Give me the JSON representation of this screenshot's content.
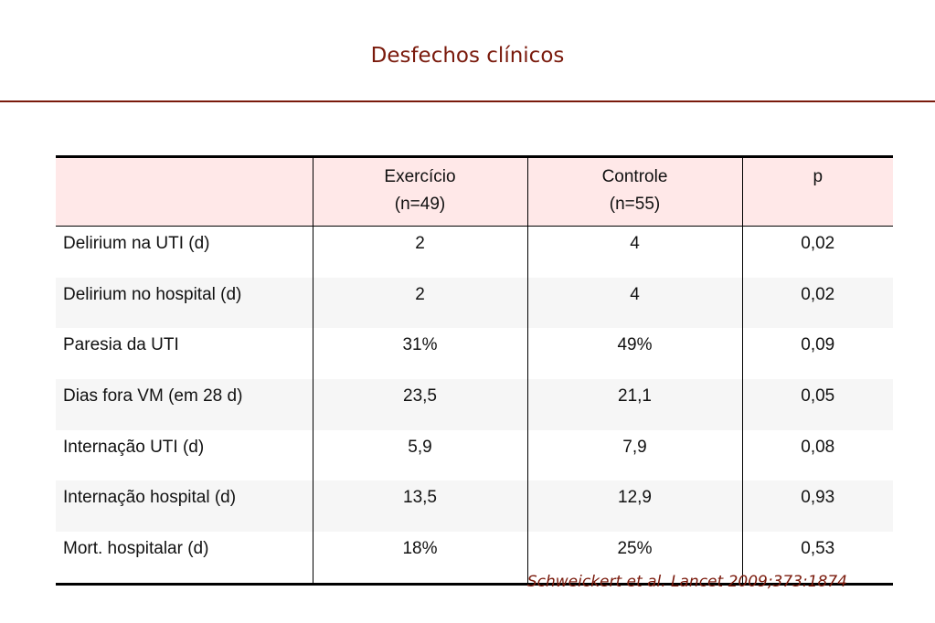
{
  "title": "Desfechos clínicos",
  "table": {
    "columns": [
      {
        "line1": "",
        "line2": ""
      },
      {
        "line1": "Exercício",
        "line2": "(n=49)"
      },
      {
        "line1": "Controle",
        "line2": "(n=55)"
      },
      {
        "line1": "p",
        "line2": ""
      }
    ],
    "rows": [
      {
        "label": "Delirium na UTI (d)",
        "exercicio": "2",
        "controle": "4",
        "p": "0,02"
      },
      {
        "label": "Delirium no hospital (d)",
        "exercicio": "2",
        "controle": "4",
        "p": "0,02"
      },
      {
        "label": "Paresia da UTI",
        "exercicio": "31%",
        "controle": "49%",
        "p": "0,09"
      },
      {
        "label": "Dias fora VM (em 28 d)",
        "exercicio": "23,5",
        "controle": "21,1",
        "p": "0,05"
      },
      {
        "label": "Internação UTI (d)",
        "exercicio": "5,9",
        "controle": "7,9",
        "p": "0,08"
      },
      {
        "label": "Internação hospital (d)",
        "exercicio": "13,5",
        "controle": "12,9",
        "p": "0,93"
      },
      {
        "label": "Mort. hospitalar (d)",
        "exercicio": "18%",
        "controle": "25%",
        "p": "0,53"
      }
    ]
  },
  "citation": "Schweickert et al. Lancet 2009;373:1874",
  "colors": {
    "accent": "#7a1a0c",
    "header_fill": "#ffe8e8",
    "alt_row_fill": "#f6f6f6"
  }
}
